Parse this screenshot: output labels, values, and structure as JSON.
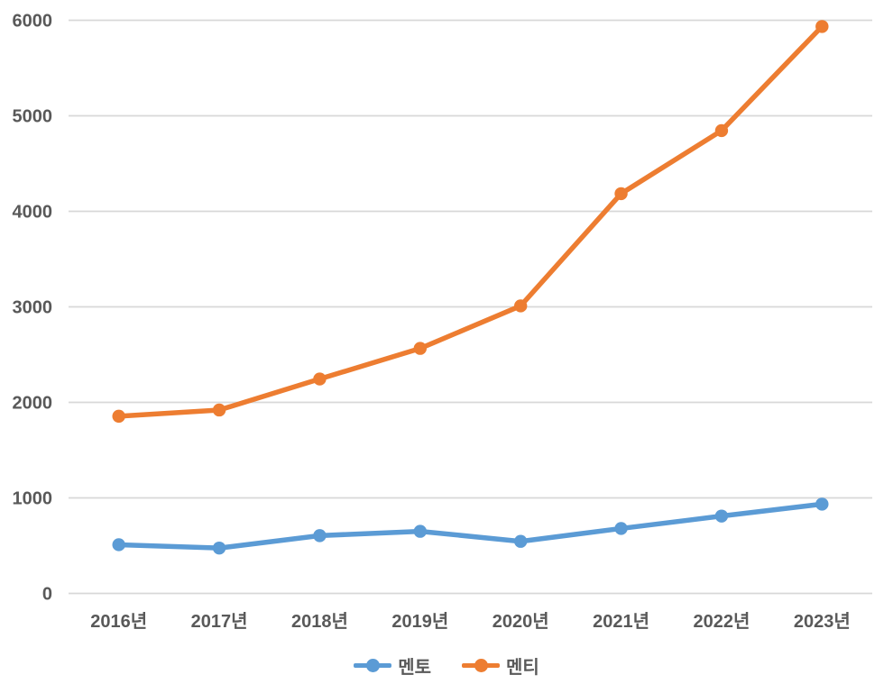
{
  "chart_data": {
    "type": "line",
    "title": "",
    "xlabel": "",
    "ylabel": "",
    "categories": [
      "2016년",
      "2017년",
      "2018년",
      "2019년",
      "2020년",
      "2021년",
      "2022년",
      "2023년"
    ],
    "series": [
      {
        "name": "멘토",
        "color": "#5B9BD5",
        "values": [
          510,
          475,
          605,
          650,
          545,
          680,
          810,
          935
        ]
      },
      {
        "name": "멘티",
        "color": "#ED7D31",
        "values": [
          1855,
          1920,
          2245,
          2565,
          3010,
          4185,
          4845,
          5935
        ]
      }
    ],
    "ylim": [
      0,
      6000
    ],
    "yticks": [
      0,
      1000,
      2000,
      3000,
      4000,
      5000,
      6000
    ],
    "grid": "horizontal",
    "legend_position": "bottom",
    "styles": {
      "grid_color": "#D8D8D8",
      "tick_label_color": "#595959",
      "background_color": "#FFFFFF"
    }
  }
}
